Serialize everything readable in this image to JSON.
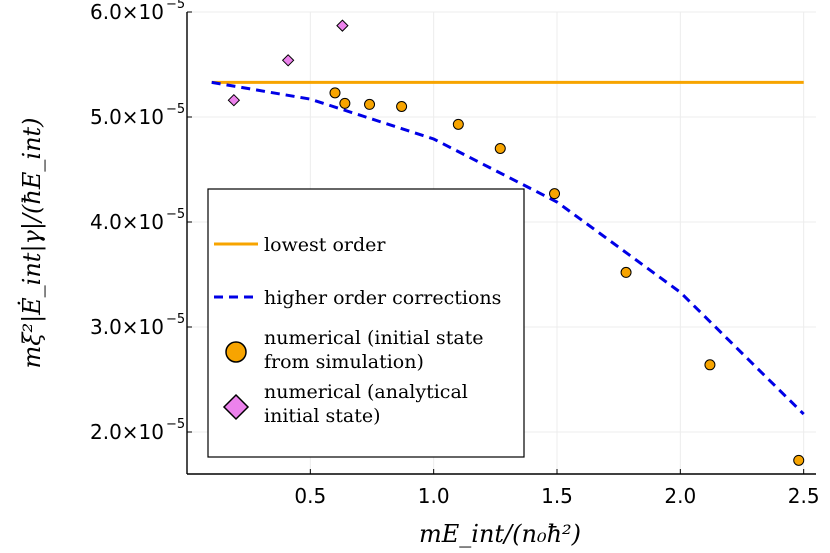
{
  "chart_data": {
    "type": "scatter",
    "title": "",
    "xlabel": "mE_int/(n₀ħ²)",
    "ylabel": "mξ²|Ė_int|γ|/(ħE_int)",
    "xlim": [
      0.0,
      2.55
    ],
    "ylim": [
      1.6e-05,
      6e-05
    ],
    "x_ticks": [
      {
        "value": 0.5,
        "label": "0.5"
      },
      {
        "value": 1.0,
        "label": "1.0"
      },
      {
        "value": 1.5,
        "label": "1.5"
      },
      {
        "value": 2.0,
        "label": "2.0"
      },
      {
        "value": 2.5,
        "label": "2.5"
      }
    ],
    "y_ticks": [
      {
        "value": 2e-05,
        "mantissa": "2.0×10",
        "exponent": "−5"
      },
      {
        "value": 3e-05,
        "mantissa": "3.0×10",
        "exponent": "−5"
      },
      {
        "value": 4e-05,
        "mantissa": "4.0×10",
        "exponent": "−5"
      },
      {
        "value": 5e-05,
        "mantissa": "5.0×10",
        "exponent": "−5"
      },
      {
        "value": 6e-05,
        "mantissa": "6.0×10",
        "exponent": "−5"
      }
    ],
    "grid": true,
    "series": [
      {
        "name": "lowest order",
        "kind": "line",
        "color": "#f7a400",
        "dash": "solid",
        "x": [
          0.1,
          2.5
        ],
        "y": [
          5.33e-05,
          5.33e-05
        ]
      },
      {
        "name": "higher order corrections",
        "kind": "line",
        "color": "#0000e6",
        "dash": "dashed",
        "x": [
          0.1,
          0.5,
          1.0,
          1.5,
          2.0,
          2.5
        ],
        "y": [
          5.33e-05,
          5.17e-05,
          4.79e-05,
          4.19e-05,
          3.33e-05,
          2.17e-05
        ]
      },
      {
        "name": "numerical (initial state from simulation)",
        "legend_lines": [
          "numerical (initial state",
          "from simulation)"
        ],
        "kind": "scatter",
        "marker": "circle",
        "color": "#f7a400",
        "x": [
          0.6,
          0.64,
          0.74,
          0.87,
          1.1,
          1.27,
          1.49,
          1.78,
          2.12,
          2.48
        ],
        "y": [
          5.23e-05,
          5.13e-05,
          5.12e-05,
          5.1e-05,
          4.93e-05,
          4.7e-05,
          4.27e-05,
          3.52e-05,
          2.64e-05,
          1.73e-05
        ]
      },
      {
        "name": "numerical (analytical initial state)",
        "legend_lines": [
          "numerical (analytical",
          "initial state)"
        ],
        "kind": "scatter",
        "marker": "diamond",
        "color": "#ec82ec",
        "x": [
          0.19,
          0.41,
          0.63
        ],
        "y": [
          5.16e-05,
          5.54e-05,
          5.87e-05
        ]
      }
    ],
    "legend_position": "bottom-left"
  }
}
